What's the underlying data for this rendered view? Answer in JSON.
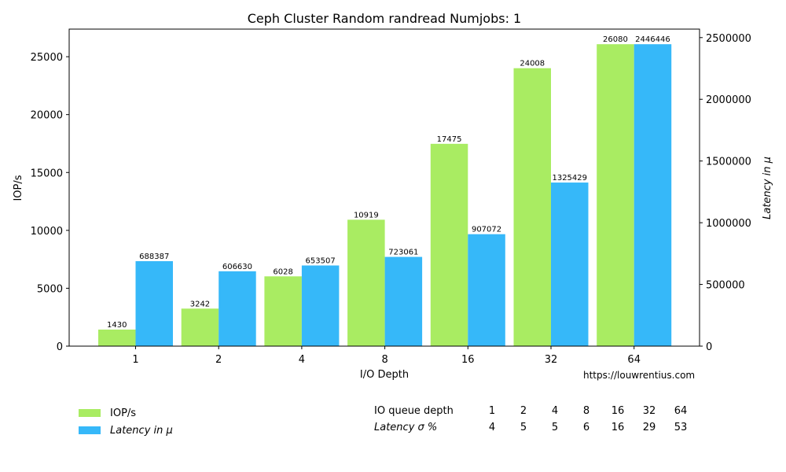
{
  "chart_data": {
    "type": "bar",
    "title": "Ceph Cluster Random randread Numjobs: 1",
    "xlabel": "I/O Depth",
    "ylabel": "IOP/s",
    "ylabel_right": "Latency in μ",
    "categories": [
      "1",
      "2",
      "4",
      "8",
      "16",
      "32",
      "64"
    ],
    "series": [
      {
        "name": "IOP/s",
        "axis": "left",
        "color": "#a9ec62",
        "values": [
          1430,
          3242,
          6028,
          10919,
          17475,
          24008,
          26080
        ]
      },
      {
        "name": "Latency in μ",
        "axis": "right",
        "color": "#36b8f9",
        "values": [
          688387,
          606630,
          653507,
          723061,
          907072,
          1325429,
          2446446
        ]
      }
    ],
    "ylim": [
      0,
      27384
    ],
    "ylim_right": [
      0,
      2568768
    ],
    "yticks": [
      0,
      5000,
      10000,
      15000,
      20000,
      25000
    ],
    "yticks_right": [
      0,
      500000,
      1000000,
      1500000,
      2000000,
      2500000
    ],
    "grid": false,
    "legend_position": "bottom-left"
  },
  "credit": "https://louwrentius.com",
  "legend": [
    {
      "label": "IOP/s",
      "color": "#a9ec62"
    },
    {
      "label": "Latency in μ",
      "color": "#36b8f9"
    }
  ],
  "stats_table": {
    "row1_label": "IO queue depth",
    "row1_values": [
      "1",
      "2",
      "4",
      "8",
      "16",
      "32",
      "64"
    ],
    "row2_label": "Latency σ %",
    "row2_values": [
      "4",
      "5",
      "5",
      "6",
      "16",
      "29",
      "53"
    ]
  }
}
